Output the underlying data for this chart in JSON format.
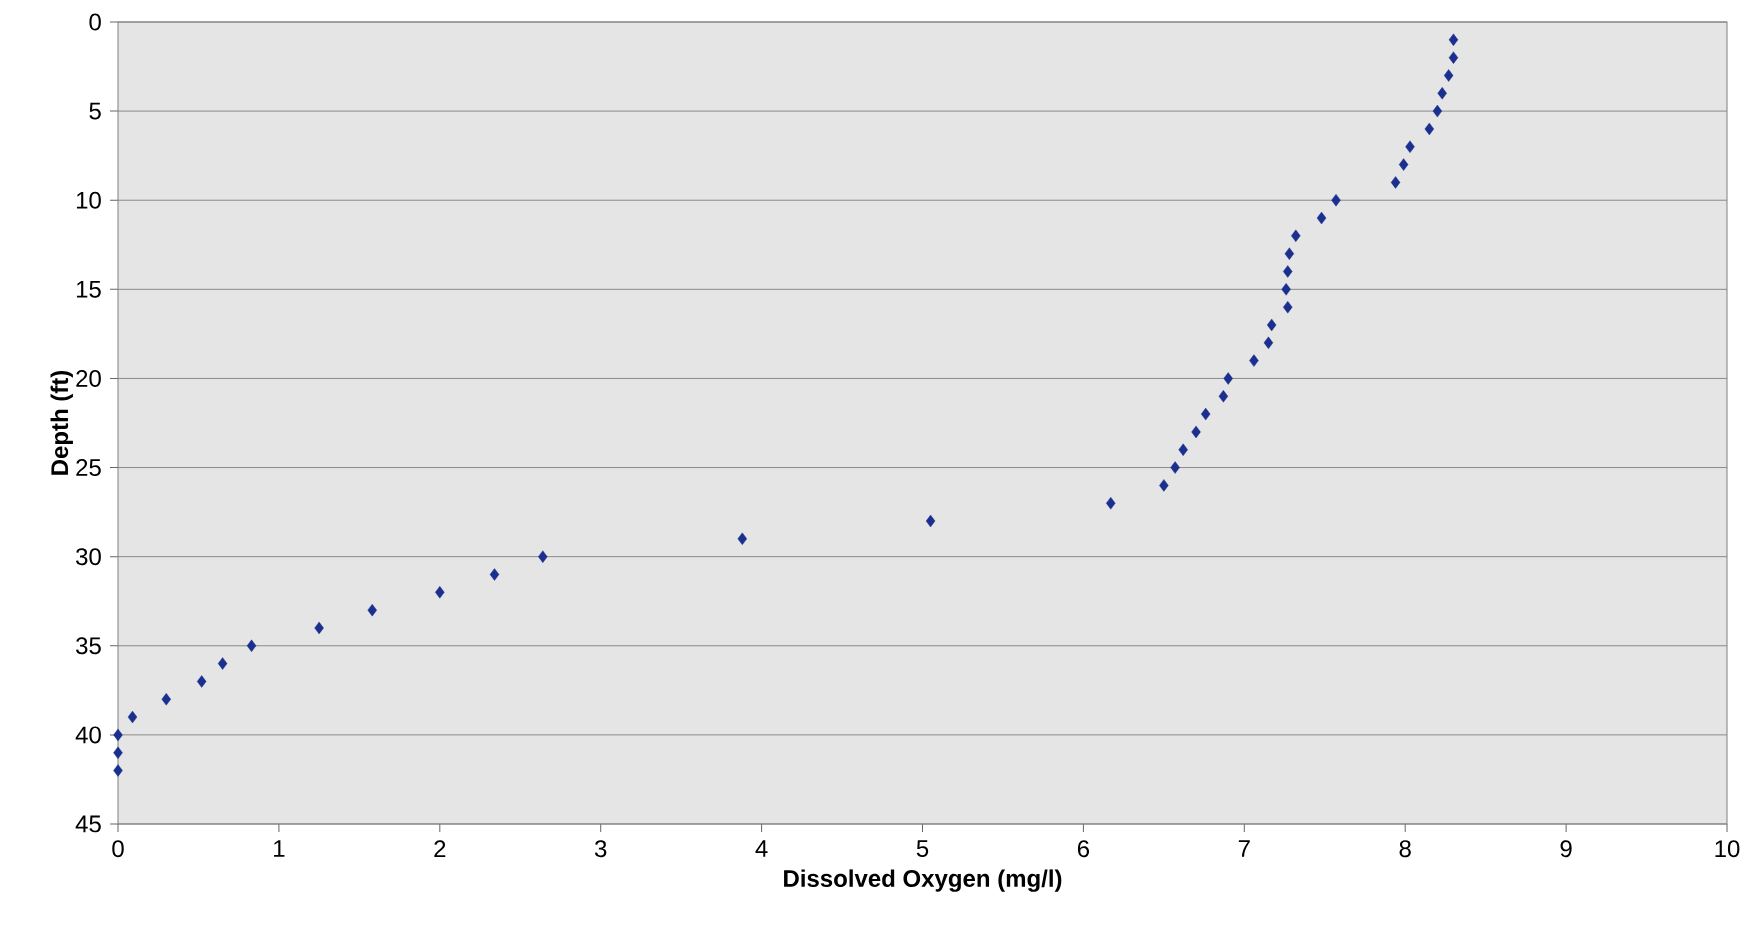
{
  "chart_data": {
    "type": "scatter",
    "xlabel": "Dissolved Oxygen (mg/l)",
    "ylabel": "Depth (ft)",
    "x": [
      8.3,
      8.3,
      8.27,
      8.23,
      8.2,
      8.15,
      8.03,
      7.99,
      7.94,
      7.57,
      7.48,
      7.32,
      7.28,
      7.27,
      7.26,
      7.27,
      7.17,
      7.15,
      7.06,
      6.9,
      6.87,
      6.76,
      6.7,
      6.62,
      6.57,
      6.5,
      6.17,
      5.05,
      3.88,
      2.64,
      2.34,
      2.0,
      1.58,
      1.25,
      0.83,
      0.65,
      0.52,
      0.3,
      0.09,
      0,
      0,
      0
    ],
    "values": [
      1,
      2,
      3,
      4,
      5,
      6,
      7,
      8,
      9,
      10,
      11,
      12,
      13,
      14,
      15,
      16,
      17,
      18,
      19,
      20,
      21,
      22,
      23,
      24,
      25,
      26,
      27,
      28,
      29,
      30,
      31,
      32,
      33,
      34,
      35,
      36,
      37,
      38,
      39,
      40,
      41,
      42
    ],
    "color": "#1b2f8f",
    "marker": "diamond",
    "grid": "y",
    "xlim": [
      0,
      10
    ],
    "xticks": [
      0,
      1,
      2,
      3,
      4,
      5,
      6,
      7,
      8,
      9,
      10
    ],
    "ylim": [
      45,
      0
    ],
    "yticks": [
      0,
      5,
      10,
      15,
      20,
      25,
      30,
      35,
      40,
      45
    ]
  }
}
